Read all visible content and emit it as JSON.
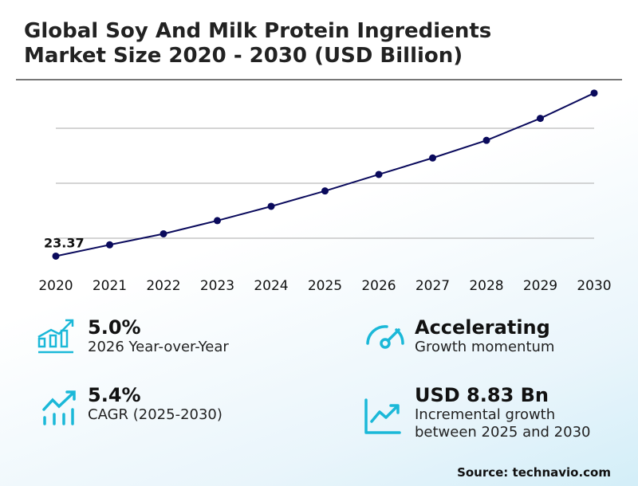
{
  "title_line1": "Global Soy And Milk Protein Ingredients",
  "title_line2": "Market Size 2020 - 2030 (USD Billion)",
  "chart_data": {
    "type": "line",
    "title": "Global Soy And Milk Protein Ingredients Market Size 2020 - 2030 (USD Billion)",
    "categories": [
      "2020",
      "2021",
      "2022",
      "2023",
      "2024",
      "2025",
      "2026",
      "2027",
      "2028",
      "2029",
      "2030"
    ],
    "values": [
      23.37,
      24.4,
      25.4,
      26.6,
      27.9,
      29.3,
      30.8,
      32.3,
      33.9,
      35.9,
      38.2
    ],
    "data_labels": {
      "0": "23.37"
    },
    "gridlines": [
      25,
      30,
      35
    ],
    "ylim": [
      22,
      40
    ],
    "grid": true,
    "line_color": "#0a0a5c"
  },
  "kpis": [
    {
      "value": "5.0%",
      "label": "2026 Year-over-Year",
      "icon": "bar-chart-growth-icon"
    },
    {
      "value": "5.4%",
      "label": "CAGR (2025-2030)",
      "icon": "trend-up-bars-icon"
    },
    {
      "value": "Accelerating",
      "label": "Growth momentum",
      "icon": "speedometer-icon"
    },
    {
      "value": "USD 8.83 Bn",
      "label": "Incremental growth",
      "label2": "between 2025 and 2030",
      "icon": "line-chart-icon"
    }
  ],
  "accent": "#1ab8d8",
  "source": "Source: technavio.com"
}
